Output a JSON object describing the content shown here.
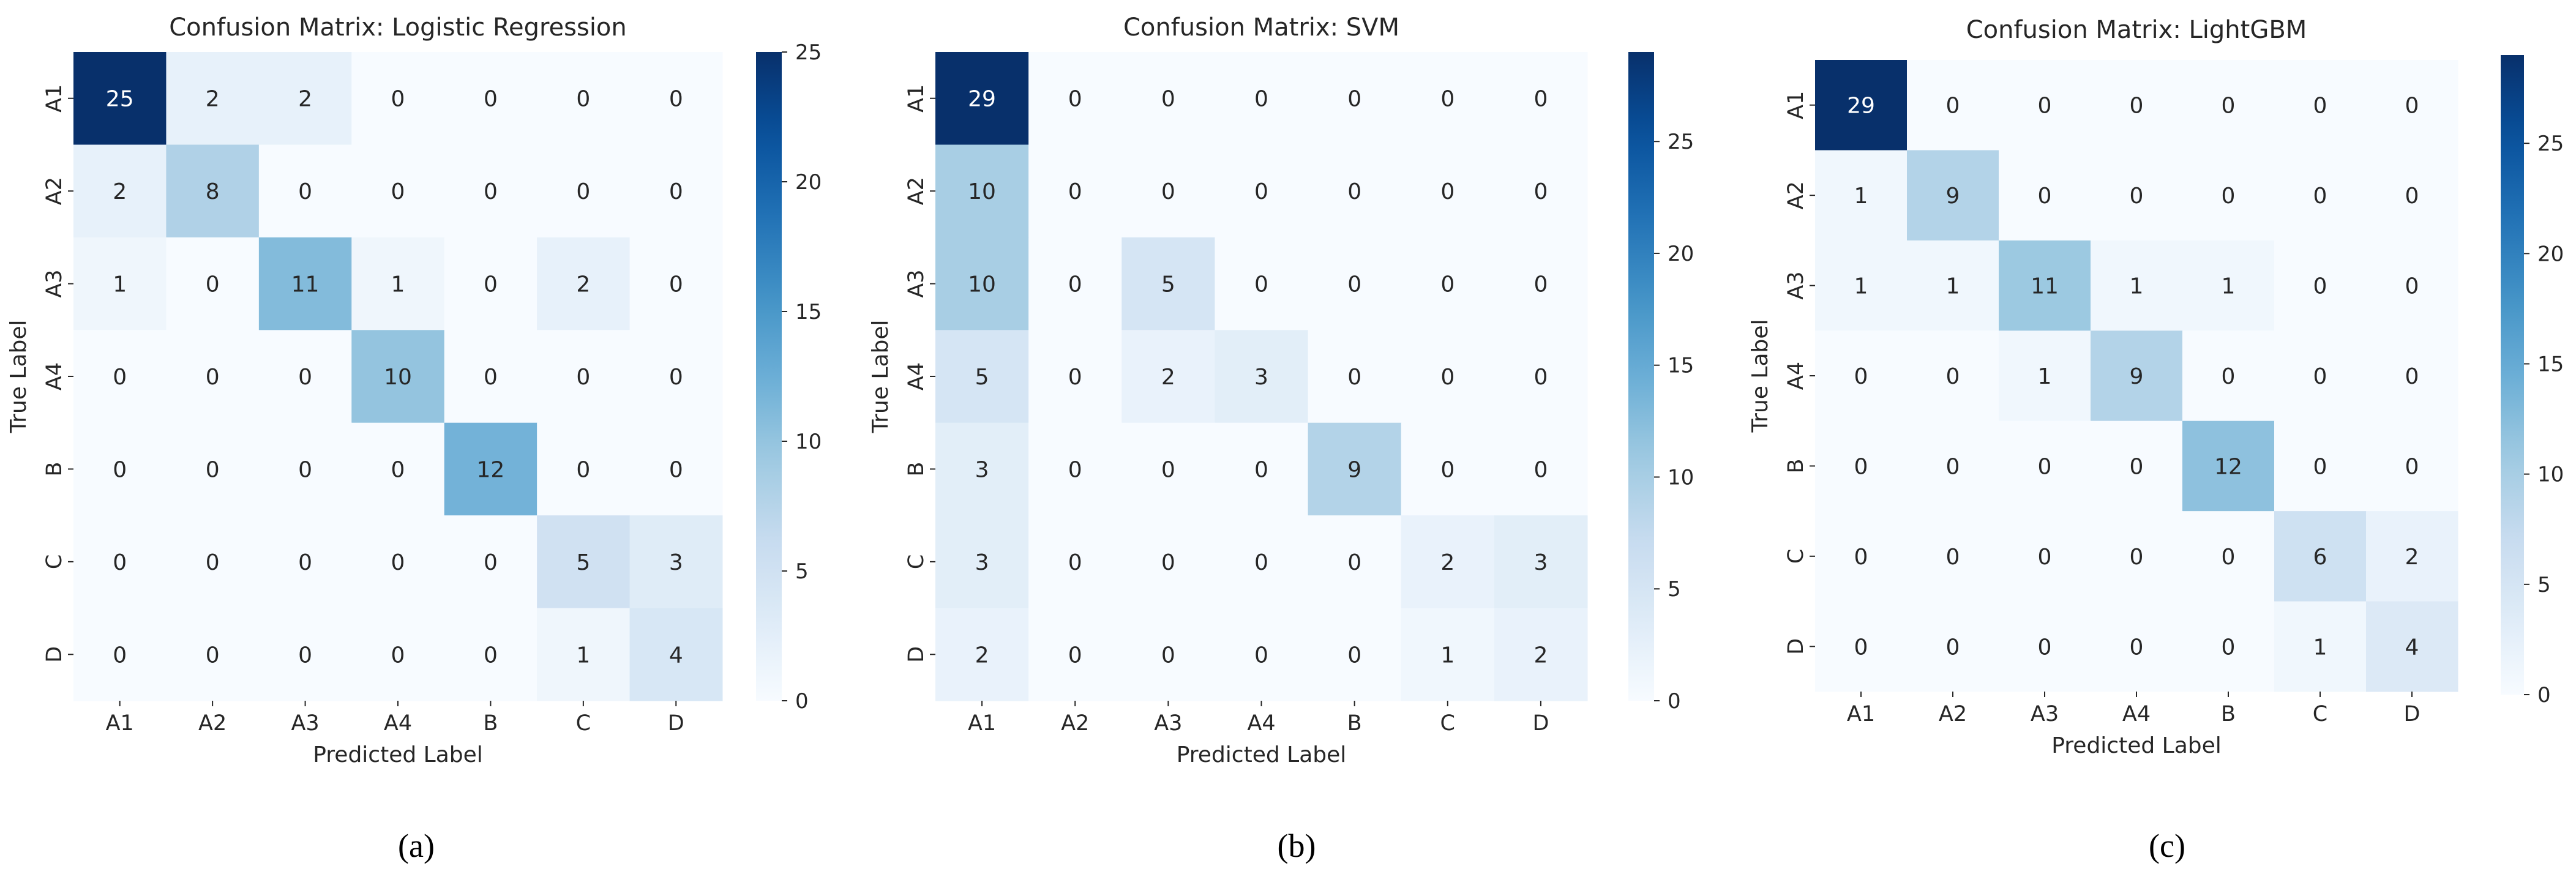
{
  "chart_data": [
    {
      "type": "heatmap",
      "title": "Confusion Matrix: Logistic Regression",
      "xlabel": "Predicted Label",
      "ylabel": "True Label",
      "x_categories": [
        "A1",
        "A2",
        "A3",
        "A4",
        "B",
        "C",
        "D"
      ],
      "y_categories": [
        "A1",
        "A2",
        "A3",
        "A4",
        "B",
        "C",
        "D"
      ],
      "matrix": [
        [
          25,
          2,
          2,
          0,
          0,
          0,
          0
        ],
        [
          2,
          8,
          0,
          0,
          0,
          0,
          0
        ],
        [
          1,
          0,
          11,
          1,
          0,
          2,
          0
        ],
        [
          0,
          0,
          0,
          10,
          0,
          0,
          0
        ],
        [
          0,
          0,
          0,
          0,
          12,
          0,
          0
        ],
        [
          0,
          0,
          0,
          0,
          0,
          5,
          3
        ],
        [
          0,
          0,
          0,
          0,
          0,
          1,
          4
        ]
      ],
      "vmin": 0,
      "vmax": 25,
      "colorbar_ticks": [
        0,
        5,
        10,
        15,
        20,
        25
      ],
      "colormap": "Blues",
      "caption": "(a)"
    },
    {
      "type": "heatmap",
      "title": "Confusion Matrix: SVM",
      "xlabel": "Predicted Label",
      "ylabel": "True Label",
      "x_categories": [
        "A1",
        "A2",
        "A3",
        "A4",
        "B",
        "C",
        "D"
      ],
      "y_categories": [
        "A1",
        "A2",
        "A3",
        "A4",
        "B",
        "C",
        "D"
      ],
      "matrix": [
        [
          29,
          0,
          0,
          0,
          0,
          0,
          0
        ],
        [
          10,
          0,
          0,
          0,
          0,
          0,
          0
        ],
        [
          10,
          0,
          5,
          0,
          0,
          0,
          0
        ],
        [
          5,
          0,
          2,
          3,
          0,
          0,
          0
        ],
        [
          3,
          0,
          0,
          0,
          9,
          0,
          0
        ],
        [
          3,
          0,
          0,
          0,
          0,
          2,
          3
        ],
        [
          2,
          0,
          0,
          0,
          0,
          1,
          2
        ]
      ],
      "vmin": 0,
      "vmax": 29,
      "colorbar_ticks": [
        0,
        5,
        10,
        15,
        20,
        25
      ],
      "colormap": "Blues",
      "caption": "(b)"
    },
    {
      "type": "heatmap",
      "title": "Confusion Matrix: LightGBM",
      "xlabel": "Predicted Label",
      "ylabel": "True Label",
      "x_categories": [
        "A1",
        "A2",
        "A3",
        "A4",
        "B",
        "C",
        "D"
      ],
      "y_categories": [
        "A1",
        "A2",
        "A3",
        "A4",
        "B",
        "C",
        "D"
      ],
      "matrix": [
        [
          29,
          0,
          0,
          0,
          0,
          0,
          0
        ],
        [
          1,
          9,
          0,
          0,
          0,
          0,
          0
        ],
        [
          1,
          1,
          11,
          1,
          1,
          0,
          0
        ],
        [
          0,
          0,
          1,
          9,
          0,
          0,
          0
        ],
        [
          0,
          0,
          0,
          0,
          12,
          0,
          0
        ],
        [
          0,
          0,
          0,
          0,
          0,
          6,
          2
        ],
        [
          0,
          0,
          0,
          0,
          0,
          1,
          4
        ]
      ],
      "vmin": 0,
      "vmax": 29,
      "colorbar_ticks": [
        0,
        5,
        10,
        15,
        20,
        25
      ],
      "colormap": "Blues",
      "caption": "(c)"
    }
  ]
}
